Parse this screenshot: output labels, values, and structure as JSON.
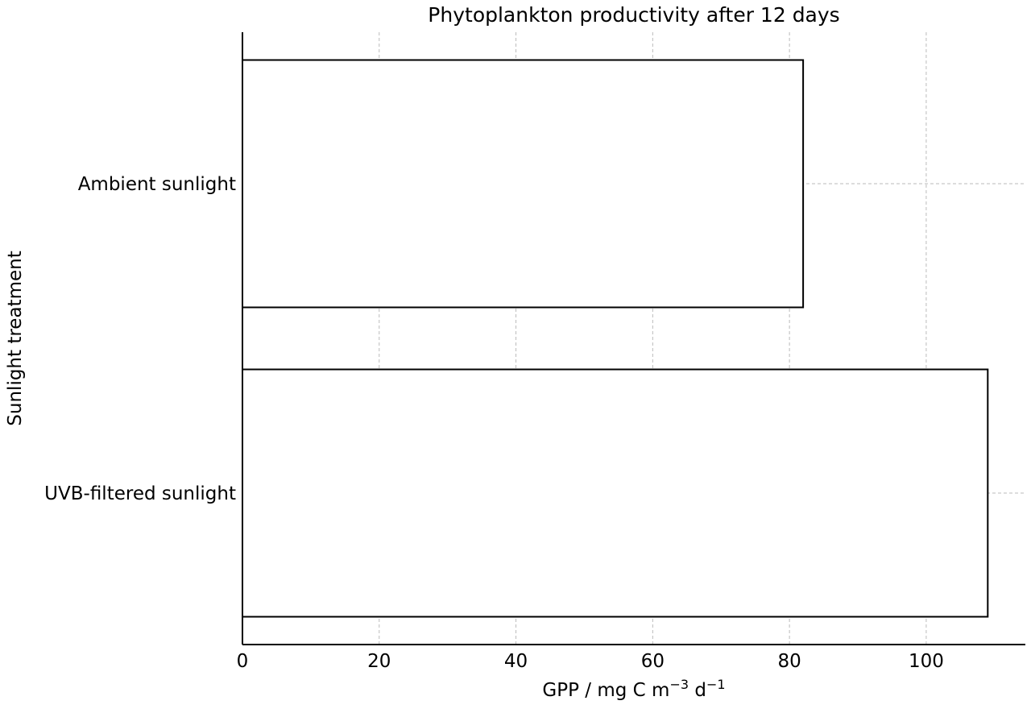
{
  "chart_data": {
    "type": "bar",
    "orientation": "horizontal",
    "title": "Phytoplankton productivity after 12 days",
    "xlabel": {
      "prefix": "GPP / mg C m",
      "sup1": "−3",
      "middle": " d",
      "sup2": "−1"
    },
    "ylabel": "Sunlight treatment",
    "categories": [
      "Ambient sunlight",
      "UVB-filtered sunlight"
    ],
    "values": [
      82,
      109
    ],
    "xlim": [
      0,
      114.5
    ],
    "xticks": [
      0,
      20,
      40,
      60,
      80,
      100
    ],
    "grid": true,
    "legend": "none",
    "colors": {
      "bar_fill": "#ffffff",
      "bar_edge": "#000000",
      "grid": "#bbbbbb",
      "axis": "#000000"
    }
  }
}
